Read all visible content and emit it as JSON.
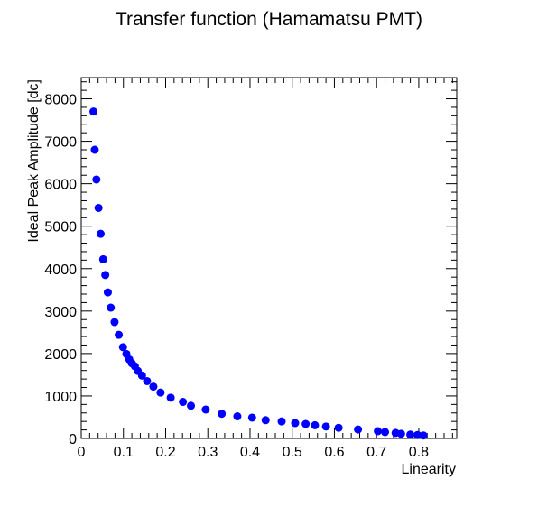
{
  "chart_data": {
    "type": "scatter",
    "title": "Transfer function (Hamamatsu PMT)",
    "xlabel": "Linearity",
    "ylabel": "Ideal Peak Amplitude [dc]",
    "xlim": [
      0,
      0.89
    ],
    "ylim": [
      0,
      8500
    ],
    "x_ticks": [
      "0",
      "0.1",
      "0.2",
      "0.3",
      "0.4",
      "0.5",
      "0.6",
      "0.7",
      "0.8"
    ],
    "y_ticks": [
      "0",
      "1000",
      "2000",
      "3000",
      "4000",
      "5000",
      "6000",
      "7000",
      "8000"
    ],
    "grid": false,
    "marker_color": "#0000ff",
    "series": [
      {
        "x": [
          0.029,
          0.032,
          0.036,
          0.041,
          0.046,
          0.052,
          0.057,
          0.063,
          0.07,
          0.079,
          0.089,
          0.099,
          0.107,
          0.114,
          0.12,
          0.127,
          0.134,
          0.144,
          0.156,
          0.171,
          0.188,
          0.212,
          0.241,
          0.26,
          0.295,
          0.333,
          0.37,
          0.405,
          0.437,
          0.475,
          0.507,
          0.532,
          0.554,
          0.58,
          0.61,
          0.656,
          0.703,
          0.72,
          0.745,
          0.758,
          0.78,
          0.797,
          0.811
        ],
        "y": [
          7700,
          6800,
          6100,
          5430,
          4820,
          4220,
          3850,
          3440,
          3080,
          2740,
          2440,
          2150,
          1990,
          1860,
          1770,
          1700,
          1590,
          1480,
          1350,
          1220,
          1080,
          960,
          860,
          770,
          680,
          580,
          520,
          490,
          430,
          400,
          360,
          340,
          310,
          280,
          250,
          210,
          170,
          150,
          130,
          110,
          90,
          80,
          70
        ]
      }
    ]
  }
}
